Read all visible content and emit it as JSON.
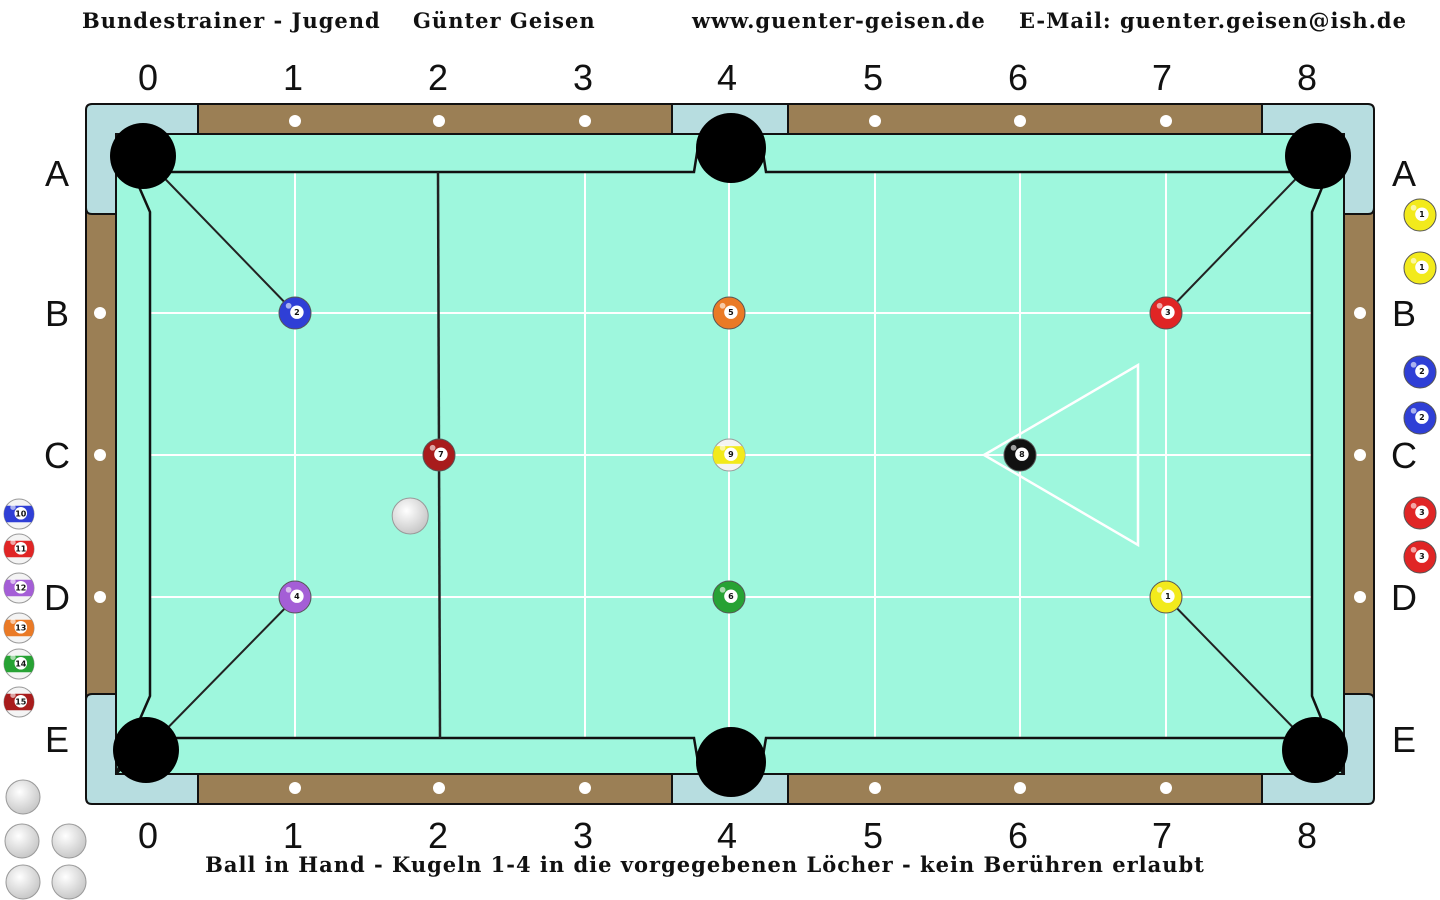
{
  "header": {
    "left": "Bundestrainer - Jugend",
    "name": "Günter Geisen",
    "website": "www.guenter-geisen.de",
    "email": "E-Mail: guenter.geisen@ish.de"
  },
  "footer": {
    "text": "Ball in Hand - Kugeln 1-4 in die vorgegebenen Löcher - kein Berühren erlaubt"
  },
  "columns": [
    "0",
    "1",
    "2",
    "3",
    "4",
    "5",
    "6",
    "7",
    "8"
  ],
  "rows": [
    "A",
    "B",
    "C",
    "D",
    "E"
  ],
  "colors": {
    "felt": "#9ef7dd",
    "rail": "#9b7f55",
    "pocket_plate": "#b7dde0",
    "pocket": "#000000",
    "grid": "#ffffff",
    "ball_1": "#f2ea1c",
    "ball_2": "#2f3fd6",
    "ball_3": "#e02525",
    "ball_4": "#a45ed6",
    "ball_5": "#ea7a26",
    "ball_6": "#27a234",
    "ball_7": "#a81c1c",
    "ball_8": "#111111",
    "cue_ball": "#eeeeee"
  },
  "table_balls": [
    {
      "number": "2",
      "color": "ball_2",
      "striped": false,
      "col": 1,
      "row": "B"
    },
    {
      "number": "5",
      "color": "ball_5",
      "striped": false,
      "col": 4,
      "row": "B"
    },
    {
      "number": "3",
      "color": "ball_3",
      "striped": false,
      "col": 7,
      "row": "B"
    },
    {
      "number": "7",
      "color": "ball_7",
      "striped": false,
      "col": 2,
      "row": "C"
    },
    {
      "number": "9",
      "color": "ball_1",
      "striped": true,
      "col": 4,
      "row": "C"
    },
    {
      "number": "8",
      "color": "ball_8",
      "striped": false,
      "col": 6,
      "row": "C"
    },
    {
      "number": "4",
      "color": "ball_4",
      "striped": false,
      "col": 1,
      "row": "D"
    },
    {
      "number": "6",
      "color": "ball_6",
      "striped": false,
      "col": 4,
      "row": "D"
    },
    {
      "number": "1",
      "color": "ball_1",
      "striped": false,
      "col": 7,
      "row": "D"
    }
  ],
  "cue_ball": {
    "col": 1.8,
    "row": "C-D"
  },
  "right_tray": [
    {
      "number": "1",
      "color": "ball_1",
      "striped": false
    },
    {
      "number": "1",
      "color": "ball_1",
      "striped": false
    },
    {
      "number": "2",
      "color": "ball_2",
      "striped": false
    },
    {
      "number": "2",
      "color": "ball_2",
      "striped": false
    },
    {
      "number": "3",
      "color": "ball_3",
      "striped": false
    },
    {
      "number": "3",
      "color": "ball_3",
      "striped": false
    }
  ],
  "left_tray": [
    {
      "number": "10",
      "color": "ball_2",
      "striped": true
    },
    {
      "number": "11",
      "color": "ball_3",
      "striped": true
    },
    {
      "number": "12",
      "color": "ball_4",
      "striped": true
    },
    {
      "number": "13",
      "color": "ball_5",
      "striped": true
    },
    {
      "number": "14",
      "color": "ball_6",
      "striped": true
    },
    {
      "number": "15",
      "color": "ball_7",
      "striped": true
    }
  ],
  "extra_cue_balls": 5
}
